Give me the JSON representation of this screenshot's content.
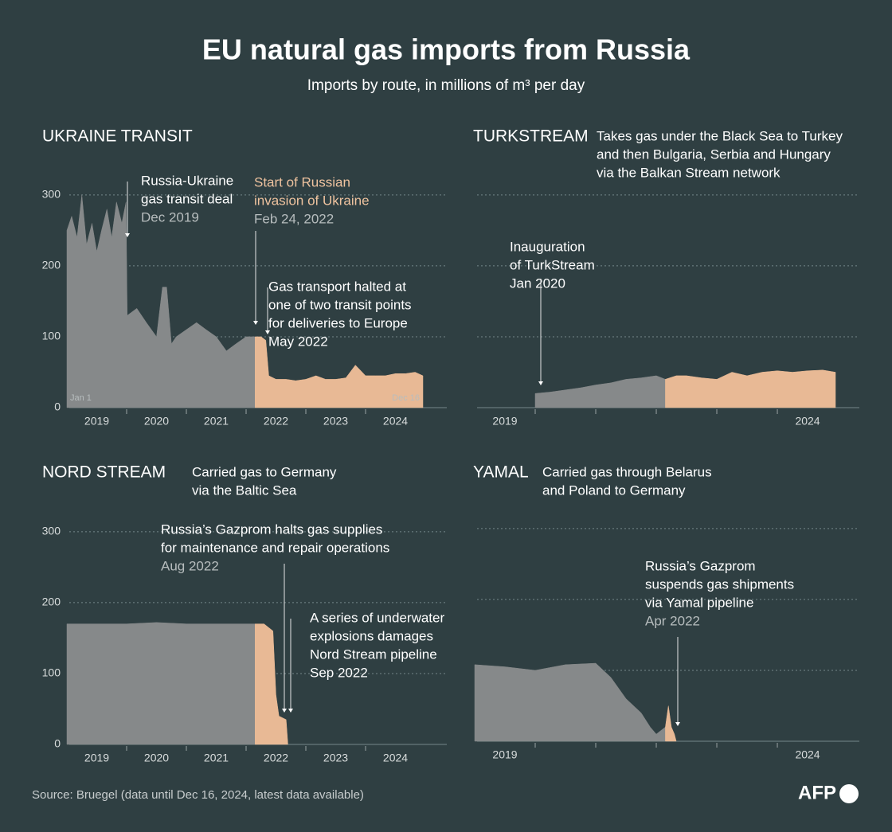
{
  "title": "EU natural gas imports from Russia",
  "subtitle": "Imports by route, in millions of m³ per day",
  "source": "Source: Bruegel (data until Dec 16, 2024, latest data available)",
  "logo": "AFP",
  "chart_data": [
    {
      "type": "area",
      "title": "UKRAINE TRANSIT",
      "xlim": [
        2019,
        2024.96
      ],
      "ylim": [
        0,
        320
      ],
      "yticks": [
        0,
        100,
        200,
        300
      ],
      "show_ytick_labels": true,
      "grid": true,
      "xticks": [
        {
          "value": 2019.5,
          "label": "2019"
        },
        {
          "value": 2020.5,
          "label": "2020"
        },
        {
          "value": 2021.5,
          "label": "2021"
        },
        {
          "value": 2022.5,
          "label": "2022"
        },
        {
          "value": 2023.5,
          "label": "2023"
        },
        {
          "value": 2024.5,
          "label": "2024"
        }
      ],
      "xminorticks": [
        2020,
        2021,
        2022,
        2023,
        2024
      ],
      "edge_labels": [
        "Jan 1",
        "Dec 16"
      ],
      "series": [
        {
          "color": "#86898a",
          "x": [
            2019,
            2019.08,
            2019.17,
            2019.25,
            2019.33,
            2019.42,
            2019.5,
            2019.58,
            2019.67,
            2019.75,
            2019.83,
            2019.92,
            2019.99,
            2020.01,
            2020.17,
            2020.33,
            2020.5,
            2020.6,
            2020.67,
            2020.75,
            2020.83,
            2021,
            2021.17,
            2021.33,
            2021.5,
            2021.67,
            2021.83,
            2022,
            2022.15
          ],
          "values": [
            250,
            270,
            240,
            300,
            230,
            260,
            220,
            250,
            280,
            240,
            290,
            260,
            290,
            130,
            140,
            120,
            100,
            170,
            170,
            90,
            100,
            110,
            120,
            110,
            100,
            80,
            90,
            100,
            100
          ]
        },
        {
          "color": "#e8b995",
          "x": [
            2022.15,
            2022.25,
            2022.33,
            2022.38,
            2022.5,
            2022.67,
            2022.83,
            2023,
            2023.17,
            2023.33,
            2023.5,
            2023.67,
            2023.83,
            2024,
            2024.17,
            2024.33,
            2024.5,
            2024.67,
            2024.83,
            2024.96
          ],
          "values": [
            100,
            100,
            95,
            45,
            40,
            40,
            38,
            40,
            45,
            40,
            40,
            42,
            60,
            45,
            45,
            45,
            48,
            48,
            50,
            45
          ]
        }
      ],
      "annotations": [
        {
          "lines": [
            "Russia-Ukraine",
            "gas transit deal"
          ],
          "date": "Dec 2019"
        },
        {
          "lines": [
            "Start of Russian",
            "invasion of Ukraine"
          ],
          "date": "Feb 24, 2022",
          "highlight": true
        },
        {
          "lines": [
            "Gas transport halted at",
            "one of two transit points",
            "for deliveries to Europe",
            "May 2022"
          ]
        }
      ]
    },
    {
      "type": "area",
      "title": "TURKSTREAM",
      "description": [
        "Takes gas under the Black Sea to Turkey",
        "and then Bulgaria, Serbia and Hungary",
        "via the Balkan Stream network"
      ],
      "xlim": [
        2019,
        2024.96
      ],
      "ylim": [
        0,
        320
      ],
      "yticks": [
        0,
        100,
        200,
        300
      ],
      "show_ytick_labels": false,
      "grid": true,
      "xticks": [
        {
          "value": 2019.5,
          "label": "2019"
        },
        {
          "value": 2024.5,
          "label": "2024"
        }
      ],
      "xminorticks": [
        2020,
        2021,
        2022,
        2023,
        2024
      ],
      "series": [
        {
          "color": "#86898a",
          "x": [
            2020,
            2020.25,
            2020.5,
            2020.75,
            2021,
            2021.25,
            2021.5,
            2021.75,
            2022,
            2022.15
          ],
          "values": [
            20,
            22,
            25,
            28,
            32,
            35,
            40,
            42,
            45,
            40
          ]
        },
        {
          "color": "#e8b995",
          "x": [
            2022.15,
            2022.33,
            2022.5,
            2022.75,
            2023,
            2023.25,
            2023.5,
            2023.75,
            2024,
            2024.25,
            2024.5,
            2024.75,
            2024.96
          ],
          "values": [
            40,
            45,
            45,
            42,
            40,
            50,
            45,
            50,
            52,
            50,
            52,
            53,
            50
          ]
        }
      ],
      "annotations": [
        {
          "lines": [
            "Inauguration",
            "of TurkStream",
            "Jan 2020"
          ]
        }
      ]
    },
    {
      "type": "area",
      "title": "NORD STREAM",
      "description": [
        "Carried gas to Germany",
        "via the Baltic Sea"
      ],
      "xlim": [
        2019,
        2024.96
      ],
      "ylim": [
        0,
        320
      ],
      "yticks": [
        0,
        100,
        200,
        300
      ],
      "show_ytick_labels": true,
      "grid": true,
      "xticks": [
        {
          "value": 2019.5,
          "label": "2019"
        },
        {
          "value": 2020.5,
          "label": "2020"
        },
        {
          "value": 2021.5,
          "label": "2021"
        },
        {
          "value": 2022.5,
          "label": "2022"
        },
        {
          "value": 2023.5,
          "label": "2023"
        },
        {
          "value": 2024.5,
          "label": "2024"
        }
      ],
      "xminorticks": [
        2020,
        2021,
        2022,
        2023,
        2024
      ],
      "series": [
        {
          "color": "#86898a",
          "x": [
            2019,
            2019.5,
            2020,
            2020.5,
            2021,
            2021.5,
            2022,
            2022.15
          ],
          "values": [
            170,
            170,
            170,
            172,
            170,
            170,
            170,
            170
          ]
        },
        {
          "color": "#e8b995",
          "x": [
            2022.15,
            2022.3,
            2022.45,
            2022.5,
            2022.55,
            2022.67,
            2022.7
          ],
          "values": [
            170,
            170,
            160,
            70,
            40,
            35,
            0
          ]
        }
      ],
      "annotations": [
        {
          "lines": [
            "Russia’s Gazprom halts gas supplies",
            "for maintenance and repair operations"
          ],
          "date": "Aug 2022"
        },
        {
          "lines": [
            "A series of underwater",
            "explosions damages",
            "Nord Stream pipeline",
            "Sep 2022"
          ]
        }
      ]
    },
    {
      "type": "area",
      "title": "YAMAL",
      "description": [
        "Carried gas through Belarus",
        "and Poland to Germany"
      ],
      "xlim": [
        2019,
        2024.96
      ],
      "ylim": [
        0,
        320
      ],
      "yticks": [
        0,
        100,
        200,
        300
      ],
      "show_ytick_labels": false,
      "grid": true,
      "xticks": [
        {
          "value": 2019.5,
          "label": "2019"
        },
        {
          "value": 2024.5,
          "label": "2024"
        }
      ],
      "xminorticks": [
        2020,
        2021,
        2022,
        2023,
        2024
      ],
      "series": [
        {
          "color": "#86898a",
          "x": [
            2019,
            2019.5,
            2020,
            2020.5,
            2021,
            2021.25,
            2021.5,
            2021.75,
            2021.9,
            2022,
            2022.15
          ],
          "values": [
            108,
            105,
            100,
            108,
            110,
            90,
            60,
            40,
            20,
            10,
            20
          ]
        },
        {
          "color": "#e8b995",
          "x": [
            2022.15,
            2022.2,
            2022.25,
            2022.3,
            2022.33
          ],
          "values": [
            20,
            50,
            20,
            10,
            0
          ]
        }
      ],
      "annotations": [
        {
          "lines": [
            "Russia’s Gazprom",
            "suspends gas shipments",
            "via Yamal pipeline"
          ],
          "date": "Apr 2022"
        }
      ]
    }
  ]
}
